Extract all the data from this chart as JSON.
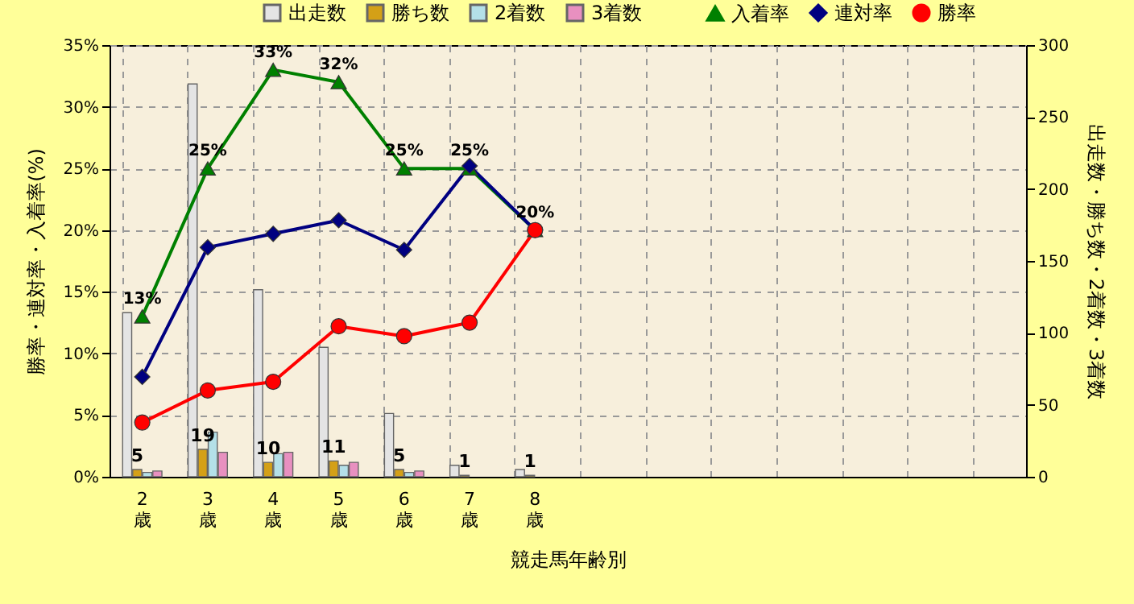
{
  "chart_data": {
    "type": "bar",
    "xlabel": "競走馬年齢別",
    "ylabel": "勝率・連対率・入着率(%)",
    "y2label": "出走数・勝ち数・2着数・3着数",
    "categories": [
      "2歳",
      "3歳",
      "4歳",
      "5歳",
      "6歳",
      "7歳",
      "8歳",
      null,
      null,
      null,
      null,
      null,
      null,
      null
    ],
    "series": [
      {
        "name": "出走数",
        "axis": "y2",
        "color": "#e4e4e4",
        "values": [
          114,
          273,
          130,
          90,
          44,
          8,
          5,
          null,
          null,
          null,
          null,
          null,
          null,
          null
        ]
      },
      {
        "name": "勝ち数",
        "axis": "y2",
        "color": "#d4a017",
        "values": [
          5,
          19,
          10,
          11,
          5,
          1,
          1,
          null,
          null,
          null,
          null,
          null,
          null,
          null
        ],
        "value_labels": [
          "5",
          "19",
          "10",
          "11",
          "5",
          "1",
          "1",
          null,
          null,
          null,
          null,
          null,
          null,
          null
        ]
      },
      {
        "name": "2着数",
        "axis": "y2",
        "color": "#b4e0e8",
        "values": [
          3,
          31,
          16,
          8,
          3,
          0,
          0,
          null,
          null,
          null,
          null,
          null,
          null,
          null
        ]
      },
      {
        "name": "3着数",
        "axis": "y2",
        "color": "#e890c0",
        "values": [
          4,
          17,
          17,
          10,
          4,
          0,
          0,
          null,
          null,
          null,
          null,
          null,
          null,
          null
        ]
      },
      {
        "name": "入着率",
        "type": "line",
        "color": "#008000",
        "marker": "triangle",
        "values": [
          13,
          25,
          33,
          32,
          25,
          25,
          20,
          null,
          null,
          null,
          null,
          null,
          null,
          null
        ],
        "value_labels": [
          "13%",
          "25%",
          "33%",
          "32%",
          "25%",
          "25%",
          "20%",
          null,
          null,
          null,
          null,
          null,
          null,
          null
        ]
      },
      {
        "name": "連対率",
        "type": "line",
        "color": "#000080",
        "marker": "diamond",
        "values": [
          8.1,
          18.6,
          19.7,
          20.8,
          18.4,
          25.2,
          20,
          null,
          null,
          null,
          null,
          null,
          null,
          null
        ]
      },
      {
        "name": "勝率",
        "type": "line",
        "color": "#ff0000",
        "marker": "circle",
        "values": [
          4.4,
          7.0,
          7.7,
          12.2,
          11.4,
          12.5,
          20,
          null,
          null,
          null,
          null,
          null,
          null,
          null
        ]
      }
    ],
    "ylim": [
      0,
      35
    ],
    "yticks": [
      {
        "value": 0,
        "label": "0%"
      },
      {
        "value": 5,
        "label": "5%"
      },
      {
        "value": 10,
        "label": "10%"
      },
      {
        "value": 15,
        "label": "15%"
      },
      {
        "value": 20,
        "label": "20%"
      },
      {
        "value": 25,
        "label": "25%"
      },
      {
        "value": 30,
        "label": "30%"
      },
      {
        "value": 35,
        "label": "35%"
      }
    ],
    "y2lim": [
      0,
      300
    ],
    "y2ticks": [
      0,
      50,
      100,
      150,
      200,
      250,
      300
    ],
    "grid": true,
    "legend": "top",
    "line_style": "solid"
  }
}
